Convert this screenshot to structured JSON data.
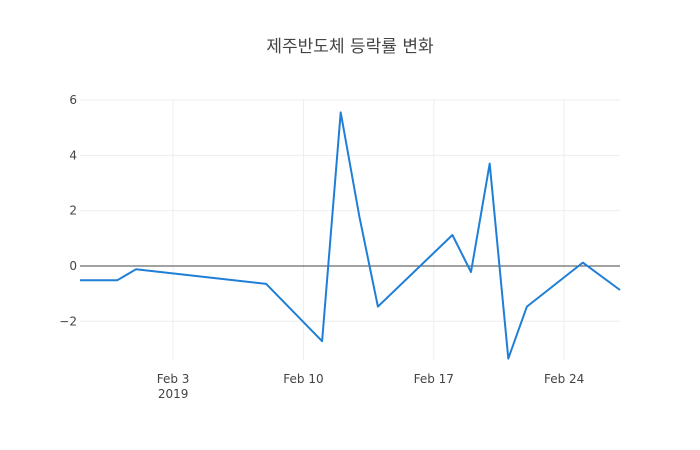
{
  "chart_data": {
    "type": "line",
    "title": "제주반도체 등락률 변화",
    "xlabel": "",
    "ylabel": "",
    "x_axis": {
      "type": "date",
      "range": [
        "2019-01-29",
        "2019-02-27"
      ],
      "ticks": [
        {
          "date": "2019-02-03",
          "label": "Feb 3",
          "sublabel": "2019"
        },
        {
          "date": "2019-02-10",
          "label": "Feb 10",
          "sublabel": ""
        },
        {
          "date": "2019-02-17",
          "label": "Feb 17",
          "sublabel": ""
        },
        {
          "date": "2019-02-24",
          "label": "Feb 24",
          "sublabel": ""
        }
      ]
    },
    "y_axis": {
      "range": [
        -3.4,
        6.0
      ],
      "ticks": [
        6,
        4,
        2,
        0,
        -2
      ],
      "tick_labels": [
        "6",
        "4",
        "2",
        "0",
        "−2"
      ]
    },
    "grid": true,
    "zero_line": true,
    "line_color": "#1f7fd6",
    "series": [
      {
        "name": "",
        "points": [
          {
            "x": "2019-01-29",
            "y": -0.52
          },
          {
            "x": "2019-01-31",
            "y": -0.52
          },
          {
            "x": "2019-02-01",
            "y": -0.12
          },
          {
            "x": "2019-02-08",
            "y": -0.65
          },
          {
            "x": "2019-02-11",
            "y": -2.72
          },
          {
            "x": "2019-02-12",
            "y": 5.55
          },
          {
            "x": "2019-02-13",
            "y": 1.8
          },
          {
            "x": "2019-02-14",
            "y": -1.47
          },
          {
            "x": "2019-02-18",
            "y": 1.12
          },
          {
            "x": "2019-02-19",
            "y": -0.22
          },
          {
            "x": "2019-02-20",
            "y": 3.7
          },
          {
            "x": "2019-02-21",
            "y": -3.35
          },
          {
            "x": "2019-02-22",
            "y": -1.47
          },
          {
            "x": "2019-02-25",
            "y": 0.12
          },
          {
            "x": "2019-02-27",
            "y": -0.87
          }
        ]
      }
    ]
  }
}
